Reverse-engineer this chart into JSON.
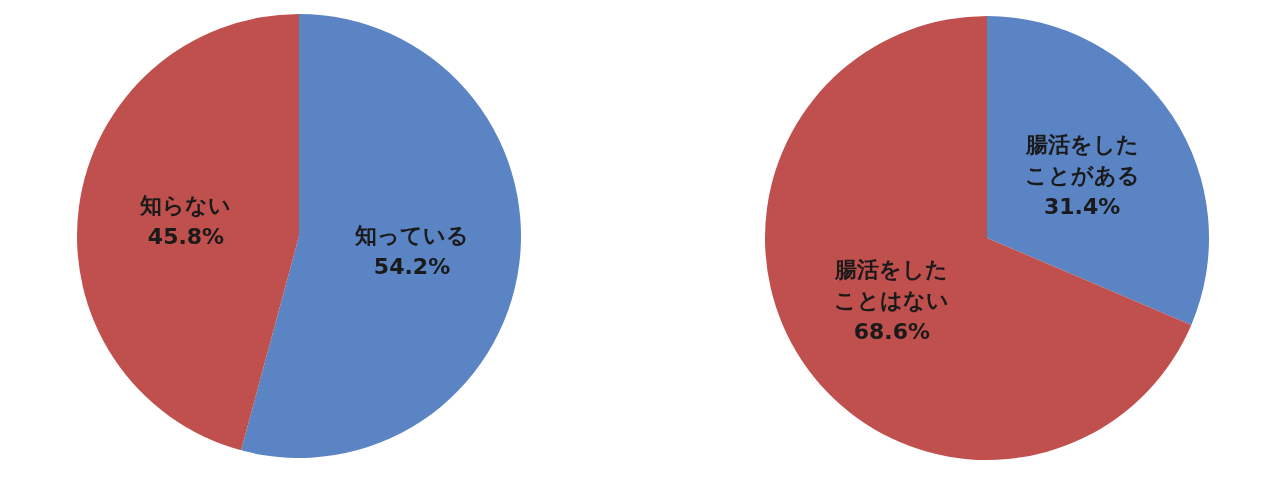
{
  "chart_data": [
    {
      "type": "pie",
      "categories": [
        "知っている",
        "知らない"
      ],
      "values": [
        54.2,
        45.8
      ],
      "colors": [
        "#5b84c4",
        "#c0504d"
      ],
      "value_labels": [
        "54.2%",
        "45.8%"
      ],
      "legend": false
    },
    {
      "type": "pie",
      "categories": [
        "腸活をしたことがある",
        "腸活をしたことはない"
      ],
      "values": [
        31.4,
        68.6
      ],
      "colors": [
        "#5b84c4",
        "#c0504d"
      ],
      "value_labels": [
        "31.4%",
        "68.6%"
      ],
      "legend": false
    }
  ]
}
